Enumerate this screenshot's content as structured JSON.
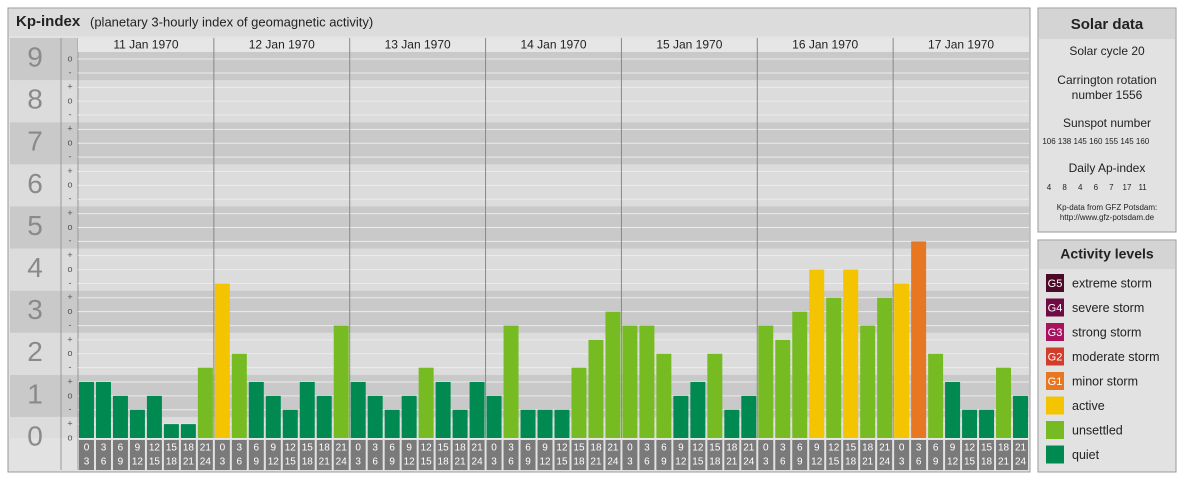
{
  "chart_data": {
    "type": "bar",
    "title": "Kp-index",
    "subtitle": "(planetary 3-hourly index of geomagnetic activity)",
    "ylim": [
      0,
      9.5
    ],
    "major_ticks": [
      0,
      1,
      2,
      3,
      4,
      5,
      6,
      7,
      8,
      9
    ],
    "yticks": [
      {
        "value": 0,
        "label": "o"
      },
      {
        "value": 0.33,
        "label": "+"
      },
      {
        "value": 0.67,
        "label": "-"
      },
      {
        "value": 1,
        "label": "o"
      },
      {
        "value": 1.33,
        "label": "+"
      },
      {
        "value": 1.67,
        "label": "-"
      },
      {
        "value": 2,
        "label": "o"
      },
      {
        "value": 2.33,
        "label": "+"
      },
      {
        "value": 2.67,
        "label": "-"
      },
      {
        "value": 3,
        "label": "o"
      },
      {
        "value": 3.33,
        "label": "+"
      },
      {
        "value": 3.67,
        "label": "-"
      },
      {
        "value": 4,
        "label": "o"
      },
      {
        "value": 4.33,
        "label": "+"
      },
      {
        "value": 4.67,
        "label": "-"
      },
      {
        "value": 5,
        "label": "o"
      },
      {
        "value": 5.33,
        "label": "+"
      },
      {
        "value": 5.67,
        "label": "-"
      },
      {
        "value": 6,
        "label": "o"
      },
      {
        "value": 6.33,
        "label": "+"
      },
      {
        "value": 6.67,
        "label": "-"
      },
      {
        "value": 7,
        "label": "o"
      },
      {
        "value": 7.33,
        "label": "+"
      },
      {
        "value": 7.67,
        "label": "-"
      },
      {
        "value": 8,
        "label": "o"
      },
      {
        "value": 8.33,
        "label": "+"
      },
      {
        "value": 8.67,
        "label": "-"
      },
      {
        "value": 9,
        "label": "o"
      }
    ],
    "grid": true,
    "time_slots": [
      [
        "0",
        "3"
      ],
      [
        "3",
        "6"
      ],
      [
        "6",
        "9"
      ],
      [
        "9",
        "12"
      ],
      [
        "12",
        "15"
      ],
      [
        "15",
        "18"
      ],
      [
        "18",
        "21"
      ],
      [
        "21",
        "24"
      ]
    ],
    "days": [
      {
        "date": "11 Jan 1970",
        "values": [
          1.33,
          1.33,
          1,
          0.67,
          1,
          0.33,
          0.33,
          1.67
        ],
        "colors": [
          "#008a52",
          "#008a52",
          "#008a52",
          "#008a52",
          "#008a52",
          "#008a52",
          "#008a52",
          "#77bb22"
        ]
      },
      {
        "date": "12 Jan 1970",
        "values": [
          3.67,
          2,
          1.33,
          1,
          0.67,
          1.33,
          1,
          2.67
        ],
        "colors": [
          "#f5c400",
          "#77bb22",
          "#008a52",
          "#008a52",
          "#008a52",
          "#008a52",
          "#008a52",
          "#77bb22"
        ]
      },
      {
        "date": "13 Jan 1970",
        "values": [
          1.33,
          1,
          0.67,
          1,
          1.67,
          1.33,
          0.67,
          1.33
        ],
        "colors": [
          "#008a52",
          "#008a52",
          "#008a52",
          "#008a52",
          "#77bb22",
          "#008a52",
          "#008a52",
          "#008a52"
        ]
      },
      {
        "date": "14 Jan 1970",
        "values": [
          1,
          2.67,
          0.67,
          0.67,
          0.67,
          1.67,
          2.33,
          3
        ],
        "colors": [
          "#008a52",
          "#77bb22",
          "#008a52",
          "#008a52",
          "#008a52",
          "#77bb22",
          "#77bb22",
          "#77bb22"
        ]
      },
      {
        "date": "15 Jan 1970",
        "values": [
          2.67,
          2.67,
          2,
          1,
          1.33,
          2,
          0.67,
          1
        ],
        "colors": [
          "#77bb22",
          "#77bb22",
          "#77bb22",
          "#008a52",
          "#008a52",
          "#77bb22",
          "#008a52",
          "#008a52"
        ]
      },
      {
        "date": "16 Jan 1970",
        "values": [
          2.67,
          2.33,
          3,
          4,
          3.33,
          4,
          2.67,
          3.33
        ],
        "colors": [
          "#77bb22",
          "#77bb22",
          "#77bb22",
          "#f5c400",
          "#77bb22",
          "#f5c400",
          "#77bb22",
          "#77bb22"
        ]
      },
      {
        "date": "17 Jan 1970",
        "values": [
          3.67,
          4.67,
          2,
          1.33,
          0.67,
          0.67,
          1.67,
          1
        ],
        "colors": [
          "#f5c400",
          "#e87722",
          "#77bb22",
          "#008a52",
          "#008a52",
          "#008a52",
          "#77bb22",
          "#008a52"
        ]
      }
    ],
    "solar_data": {
      "title": "Solar data",
      "cycle": "Solar cycle 20",
      "carrington": "Carrington rotation",
      "carrington_number": "number 1556",
      "sunspot_title": "Sunspot number",
      "sunspot": [
        106,
        138,
        145,
        160,
        155,
        145,
        160
      ],
      "ap_title": "Daily Ap-index",
      "ap": [
        4,
        8,
        4,
        6,
        7,
        17,
        11
      ],
      "source": "Kp-data from GFZ Potsdam:",
      "url": "http://www.gfz-potsdam.de"
    },
    "legend": {
      "title": "Activity levels",
      "items": [
        {
          "code": "G5",
          "label": "extreme storm",
          "color": "#4d0a28"
        },
        {
          "code": "G4",
          "label": "severe storm",
          "color": "#6e0a44"
        },
        {
          "code": "G3",
          "label": "strong storm",
          "color": "#a8125e"
        },
        {
          "code": "G2",
          "label": "moderate storm",
          "color": "#d23c2a"
        },
        {
          "code": "G1",
          "label": "minor storm",
          "color": "#e87722"
        },
        {
          "label": "active",
          "color": "#f5c400"
        },
        {
          "label": "unsettled",
          "color": "#77bb22"
        },
        {
          "label": "quiet",
          "color": "#008a52"
        }
      ]
    }
  }
}
